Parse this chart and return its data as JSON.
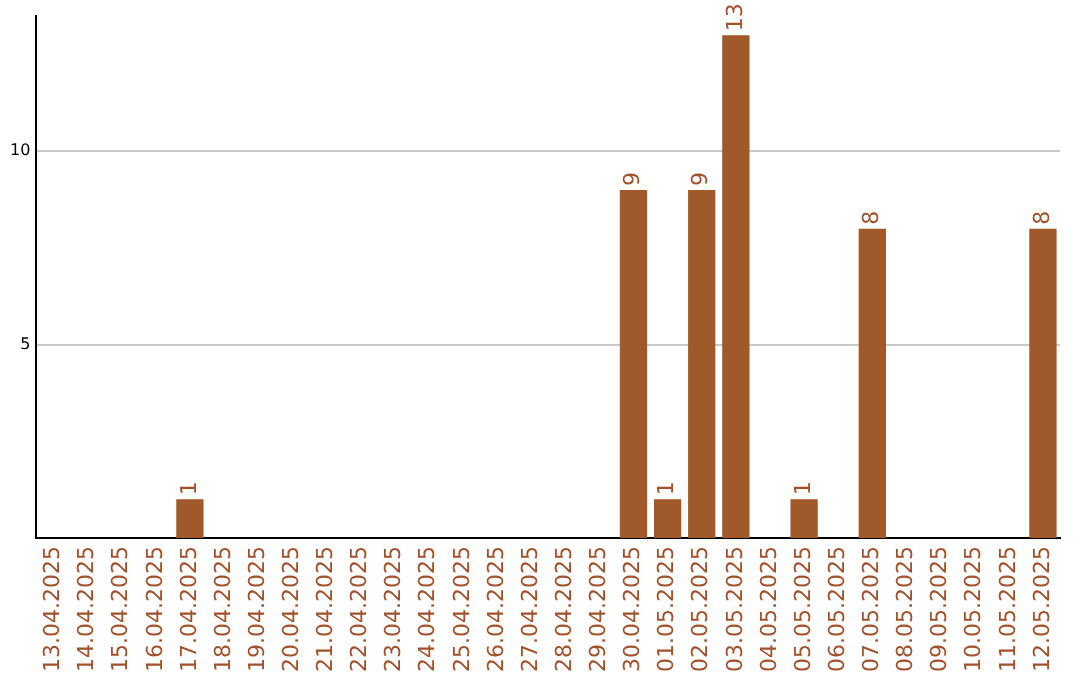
{
  "chart_data": {
    "type": "bar",
    "categories": [
      "13.04.2025",
      "14.04.2025",
      "15.04.2025",
      "16.04.2025",
      "17.04.2025",
      "18.04.2025",
      "19.04.2025",
      "20.04.2025",
      "21.04.2025",
      "22.04.2025",
      "23.04.2025",
      "24.04.2025",
      "25.04.2025",
      "26.04.2025",
      "27.04.2025",
      "28.04.2025",
      "29.04.2025",
      "30.04.2025",
      "01.05.2025",
      "02.05.2025",
      "03.05.2025",
      "04.05.2025",
      "05.05.2025",
      "06.05.2025",
      "07.05.2025",
      "08.05.2025",
      "09.05.2025",
      "10.05.2025",
      "11.05.2025",
      "12.05.2025"
    ],
    "values": [
      0,
      0,
      0,
      0,
      1,
      0,
      0,
      0,
      0,
      0,
      0,
      0,
      0,
      0,
      0,
      0,
      0,
      9,
      1,
      9,
      13,
      0,
      1,
      0,
      8,
      0,
      0,
      0,
      0,
      8
    ],
    "value_labels": [
      null,
      null,
      null,
      null,
      "1",
      null,
      null,
      null,
      null,
      null,
      null,
      null,
      null,
      null,
      null,
      null,
      null,
      "9",
      "1",
      "9",
      "13",
      null,
      "1",
      null,
      "8",
      null,
      null,
      null,
      null,
      "8"
    ],
    "color": "#a0592a",
    "ylim": [
      0,
      13.5
    ],
    "yticks": [
      5,
      10
    ],
    "grid": "y",
    "legend": false
  }
}
